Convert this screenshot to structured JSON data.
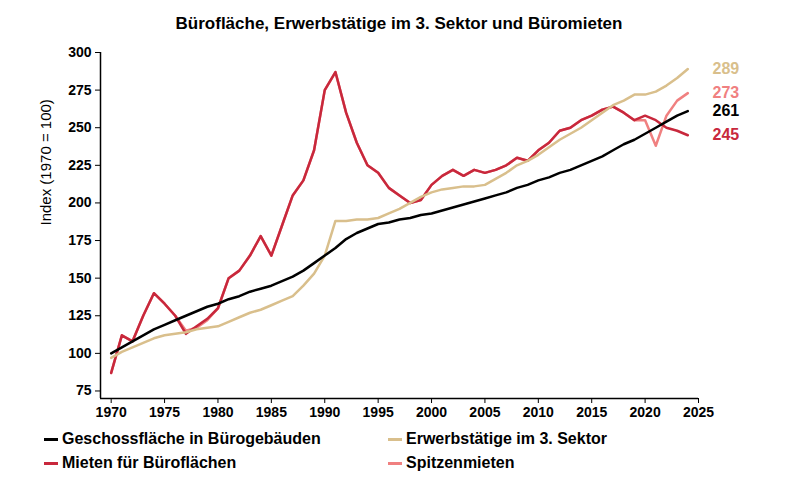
{
  "chart_data": {
    "type": "line",
    "title": "Bürofläche, Erwerbstätige im 3. Sektor und Büromieten",
    "y_label": "Index (1970 = 100)",
    "x": [
      1970,
      1971,
      1972,
      1973,
      1974,
      1975,
      1976,
      1977,
      1978,
      1979,
      1980,
      1981,
      1982,
      1983,
      1984,
      1985,
      1986,
      1987,
      1988,
      1989,
      1990,
      1991,
      1992,
      1993,
      1994,
      1995,
      1996,
      1997,
      1998,
      1999,
      2000,
      2001,
      2002,
      2003,
      2004,
      2005,
      2006,
      2007,
      2008,
      2009,
      2010,
      2011,
      2012,
      2013,
      2014,
      2015,
      2016,
      2017,
      2018,
      2019,
      2020,
      2021,
      2022,
      2023,
      2024
    ],
    "series": [
      {
        "name": "Geschossfläche in Bürogebäuden",
        "color": "#000000",
        "values": [
          100,
          104,
          108,
          112,
          116,
          119,
          122,
          125,
          128,
          131,
          133,
          136,
          138,
          141,
          143,
          145,
          148,
          151,
          155,
          160,
          165,
          170,
          176,
          180,
          183,
          186,
          187,
          189,
          190,
          192,
          193,
          195,
          197,
          199,
          201,
          203,
          205,
          207,
          210,
          212,
          215,
          217,
          220,
          222,
          225,
          228,
          231,
          235,
          239,
          242,
          246,
          250,
          254,
          258,
          261
        ]
      },
      {
        "name": "Erwerbstätige im 3. Sektor",
        "color": "#d9bf8c",
        "values": [
          97,
          101,
          104,
          107,
          110,
          112,
          113,
          114,
          116,
          117,
          118,
          121,
          124,
          127,
          129,
          132,
          135,
          138,
          145,
          153,
          165,
          188,
          188,
          189,
          189,
          190,
          193,
          196,
          200,
          204,
          207,
          209,
          210,
          211,
          211,
          212,
          216,
          220,
          225,
          228,
          232,
          237,
          242,
          246,
          250,
          255,
          260,
          265,
          268,
          272,
          272,
          274,
          278,
          283,
          289
        ]
      },
      {
        "name": "Mieten für Büroflächen",
        "color": "#c8283c",
        "values": [
          87,
          112,
          108,
          125,
          140,
          133,
          125,
          113,
          118,
          123,
          130,
          150,
          155,
          165,
          178,
          165,
          185,
          205,
          215,
          235,
          275,
          287,
          260,
          240,
          225,
          220,
          210,
          205,
          200,
          202,
          212,
          218,
          222,
          218,
          222,
          220,
          222,
          225,
          230,
          228,
          235,
          240,
          248,
          250,
          255,
          258,
          262,
          264,
          260,
          255,
          258,
          255,
          250,
          248,
          245
        ]
      },
      {
        "name": "Spitzenmieten",
        "color": "#f08080",
        "values": [
          87,
          112,
          108,
          125,
          140,
          133,
          125,
          115,
          117,
          122,
          130,
          150,
          155,
          165,
          178,
          165,
          185,
          205,
          215,
          235,
          275,
          287,
          260,
          240,
          225,
          220,
          210,
          205,
          200,
          202,
          212,
          218,
          222,
          218,
          222,
          220,
          222,
          225,
          230,
          228,
          235,
          240,
          248,
          250,
          255,
          258,
          262,
          264,
          260,
          255,
          255,
          238,
          258,
          268,
          273
        ]
      }
    ],
    "xlim": [
      1969,
      2025
    ],
    "xticks": [
      1970,
      1975,
      1980,
      1985,
      1990,
      1995,
      2000,
      2005,
      2010,
      2015,
      2020,
      2025
    ],
    "ylim": [
      70,
      300
    ],
    "yticks": [
      75,
      100,
      125,
      150,
      175,
      200,
      225,
      250,
      275,
      300
    ],
    "grid": false,
    "legend": "bottom"
  }
}
